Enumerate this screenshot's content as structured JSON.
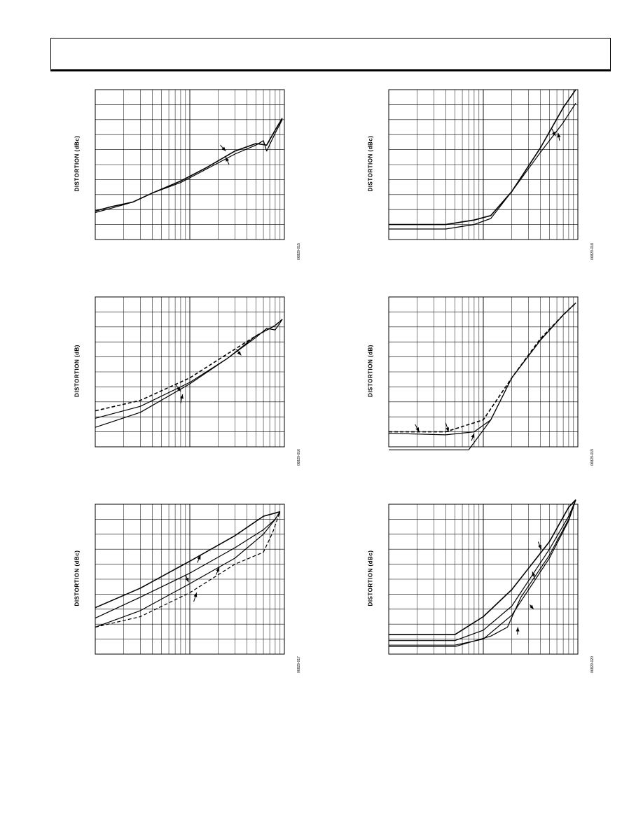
{
  "page": {
    "header": ""
  },
  "charts": [
    {
      "id": "c1",
      "ylabel": "DISTORTION (dBc)",
      "fig_id": "06829-015",
      "chart_data": {
        "type": "line",
        "xscale": "log",
        "xlim": [
          1,
          100
        ],
        "ylim": [
          0,
          10
        ],
        "series": [
          {
            "style": "solid",
            "points": [
              [
                1,
                1.9
              ],
              [
                1.5,
                2.2
              ],
              [
                2.5,
                2.5
              ],
              [
                4,
                3.1
              ],
              [
                8,
                3.9
              ],
              [
                15,
                4.8
              ],
              [
                30,
                5.9
              ],
              [
                50,
                6.4
              ],
              [
                65,
                6.3
              ],
              [
                80,
                7.3
              ],
              [
                95,
                8.1
              ]
            ]
          },
          {
            "style": "solid",
            "points": [
              [
                1,
                1.8
              ],
              [
                1.5,
                2.1
              ],
              [
                2.5,
                2.5
              ],
              [
                4,
                3.1
              ],
              [
                8,
                3.8
              ],
              [
                15,
                4.7
              ],
              [
                30,
                5.7
              ],
              [
                50,
                6.3
              ],
              [
                60,
                6.6
              ],
              [
                65,
                5.9
              ],
              [
                80,
                7.1
              ],
              [
                95,
                8.0
              ]
            ]
          }
        ],
        "arrows": [
          [
            [
              21,
              6.3
            ],
            [
              24,
              5.9
            ]
          ],
          [
            [
              26,
              5.0
            ],
            [
              24,
              5.5
            ]
          ]
        ]
      }
    },
    {
      "id": "c2",
      "ylabel": "DISTORTION (dBc)",
      "fig_id": "06829-018",
      "chart_data": {
        "type": "line",
        "xscale": "log",
        "xlim": [
          1,
          100
        ],
        "ylim": [
          0,
          10
        ],
        "series": [
          {
            "style": "solid",
            "points": [
              [
                1,
                1.0
              ],
              [
                4,
                1.0
              ],
              [
                8,
                1.3
              ],
              [
                12,
                1.6
              ],
              [
                20,
                3.2
              ],
              [
                40,
                6.1
              ],
              [
                70,
                8.8
              ],
              [
                95,
                10.0
              ]
            ]
          },
          {
            "style": "solid",
            "points": [
              [
                1,
                0.7
              ],
              [
                4,
                0.7
              ],
              [
                8,
                1.0
              ],
              [
                12,
                1.4
              ],
              [
                20,
                3.2
              ],
              [
                40,
                5.8
              ],
              [
                70,
                7.8
              ],
              [
                95,
                9.1
              ]
            ]
          }
        ],
        "arrows": [
          [
            [
              53,
              7.4
            ],
            [
              58,
              6.9
            ]
          ],
          [
            [
              64,
              6.6
            ],
            [
              62,
              7.1
            ]
          ]
        ]
      }
    },
    {
      "id": "c3",
      "ylabel": "DISTORTION (dB)",
      "fig_id": "06829-016",
      "chart_data": {
        "type": "line",
        "xscale": "log",
        "xlim": [
          1,
          100
        ],
        "ylim": [
          0,
          10
        ],
        "series": [
          {
            "style": "dashed",
            "points": [
              [
                1,
                2.4
              ],
              [
                3,
                3.1
              ],
              [
                10,
                4.6
              ],
              [
                25,
                6.2
              ],
              [
                50,
                7.4
              ],
              [
                80,
                8.1
              ],
              [
                95,
                8.5
              ]
            ]
          },
          {
            "style": "solid",
            "points": [
              [
                1,
                1.9
              ],
              [
                3,
                2.7
              ],
              [
                10,
                4.3
              ],
              [
                25,
                5.9
              ],
              [
                50,
                7.3
              ],
              [
                65,
                7.9
              ],
              [
                80,
                7.8
              ],
              [
                95,
                8.5
              ]
            ]
          },
          {
            "style": "solid",
            "points": [
              [
                1,
                1.3
              ],
              [
                3,
                2.3
              ],
              [
                10,
                4.2
              ],
              [
                25,
                5.9
              ],
              [
                50,
                7.4
              ],
              [
                80,
                8.1
              ],
              [
                95,
                8.5
              ]
            ]
          }
        ],
        "arrows": [
          [
            [
              7,
              4.2
            ],
            [
              8,
              3.7
            ]
          ],
          [
            [
              8,
              2.9
            ],
            [
              8.4,
              3.5
            ]
          ],
          [
            [
              31,
              6.5
            ],
            [
              35,
              6.1
            ]
          ]
        ]
      }
    },
    {
      "id": "c4",
      "ylabel": "DISTORTION (dB)",
      "fig_id": "06829-019",
      "chart_data": {
        "type": "line",
        "xscale": "log",
        "xlim": [
          1,
          100
        ],
        "ylim": [
          0,
          10
        ],
        "series": [
          {
            "style": "dashed",
            "points": [
              [
                1,
                1.0
              ],
              [
                4,
                1.0
              ],
              [
                10,
                1.8
              ],
              [
                20,
                4.6
              ],
              [
                40,
                7.2
              ],
              [
                70,
                8.8
              ],
              [
                95,
                9.6
              ]
            ]
          },
          {
            "style": "solid",
            "points": [
              [
                1,
                0.9
              ],
              [
                4,
                0.8
              ],
              [
                8,
                1.0
              ],
              [
                12,
                1.8
              ],
              [
                20,
                4.6
              ],
              [
                40,
                7.1
              ],
              [
                70,
                8.8
              ],
              [
                95,
                9.6
              ]
            ]
          },
          {
            "style": "solid",
            "points": [
              [
                1,
                -0.2
              ],
              [
                5,
                -0.2
              ],
              [
                7,
                -0.2
              ],
              [
                12,
                1.8
              ],
              [
                20,
                4.6
              ],
              [
                40,
                7.1
              ],
              [
                70,
                8.8
              ],
              [
                95,
                9.6
              ]
            ]
          }
        ],
        "arrows": [
          [
            [
              1.9,
              1.5
            ],
            [
              2.1,
              1.0
            ]
          ],
          [
            [
              4,
              1.6
            ],
            [
              4.3,
              1.0
            ]
          ],
          [
            [
              7.5,
              0.4
            ],
            [
              8,
              0.9
            ]
          ]
        ]
      }
    },
    {
      "id": "c5",
      "ylabel": "DISTORTION (dBc)",
      "fig_id": "06829-017",
      "chart_data": {
        "type": "line",
        "xscale": "log",
        "xlim": [
          1,
          100
        ],
        "ylim": [
          0,
          10
        ],
        "series": [
          {
            "style": "solid",
            "points": [
              [
                1,
                3.1
              ],
              [
                3,
                4.4
              ],
              [
                10,
                6.2
              ],
              [
                30,
                7.9
              ],
              [
                60,
                9.2
              ],
              [
                90,
                9.5
              ]
            ]
          },
          {
            "style": "solid",
            "points": [
              [
                1,
                2.4
              ],
              [
                3,
                3.8
              ],
              [
                10,
                5.4
              ],
              [
                30,
                7.1
              ],
              [
                60,
                8.3
              ],
              [
                80,
                9.0
              ],
              [
                90,
                9.5
              ]
            ]
          },
          {
            "style": "solid",
            "points": [
              [
                1,
                1.8
              ],
              [
                3,
                2.9
              ],
              [
                10,
                4.7
              ],
              [
                30,
                6.4
              ],
              [
                60,
                8.0
              ],
              [
                80,
                9.0
              ],
              [
                90,
                9.5
              ]
            ]
          },
          {
            "style": "dashed",
            "points": [
              [
                1,
                1.8
              ],
              [
                3,
                2.5
              ],
              [
                10,
                4.1
              ],
              [
                30,
                6.0
              ],
              [
                60,
                6.8
              ],
              [
                75,
                8.1
              ],
              [
                90,
                9.5
              ]
            ]
          }
        ],
        "arrows": [
          [
            [
              9,
              5.3
            ],
            [
              9.7,
              4.8
            ]
          ],
          [
            [
              12,
              6.1
            ],
            [
              13,
              6.6
            ]
          ],
          [
            [
              11,
              3.5
            ],
            [
              11.8,
              4.1
            ]
          ],
          [
            [
              19,
              5.3
            ],
            [
              20.5,
              5.8
            ]
          ]
        ]
      }
    },
    {
      "id": "c6",
      "ylabel": "DISTORTION (dBc)",
      "fig_id": "06829-020",
      "chart_data": {
        "type": "line",
        "xscale": "log",
        "xlim": [
          1,
          100
        ],
        "ylim": [
          0,
          10
        ],
        "series": [
          {
            "style": "solid",
            "points": [
              [
                1,
                1.3
              ],
              [
                5,
                1.3
              ],
              [
                10,
                2.5
              ],
              [
                20,
                4.3
              ],
              [
                50,
                7.5
              ],
              [
                80,
                9.8
              ],
              [
                95,
                10.3
              ]
            ]
          },
          {
            "style": "solid",
            "points": [
              [
                1,
                0.9
              ],
              [
                5,
                0.9
              ],
              [
                10,
                1.6
              ],
              [
                20,
                3.2
              ],
              [
                50,
                7.0
              ],
              [
                80,
                9.2
              ],
              [
                95,
                10.3
              ]
            ]
          },
          {
            "style": "solid",
            "points": [
              [
                1,
                0.6
              ],
              [
                5,
                0.6
              ],
              [
                10,
                1.0
              ],
              [
                20,
                2.6
              ],
              [
                50,
                6.4
              ],
              [
                80,
                8.9
              ],
              [
                95,
                10.3
              ]
            ]
          },
          {
            "style": "solid",
            "points": [
              [
                1,
                0.5
              ],
              [
                5,
                0.5
              ],
              [
                12,
                1.2
              ],
              [
                18,
                1.8
              ],
              [
                25,
                3.8
              ],
              [
                50,
                6.6
              ],
              [
                80,
                9.0
              ],
              [
                95,
                10.3
              ]
            ]
          }
        ],
        "arrows": [
          [
            [
              38,
              7.5
            ],
            [
              41,
              7.0
            ]
          ],
          [
            [
              35,
              5.0
            ],
            [
              33,
              5.5
            ]
          ],
          [
            [
              31,
              3.3
            ],
            [
              34,
              3.0
            ]
          ],
          [
            [
              23,
              1.3
            ],
            [
              23.2,
              1.8
            ]
          ]
        ]
      }
    }
  ]
}
